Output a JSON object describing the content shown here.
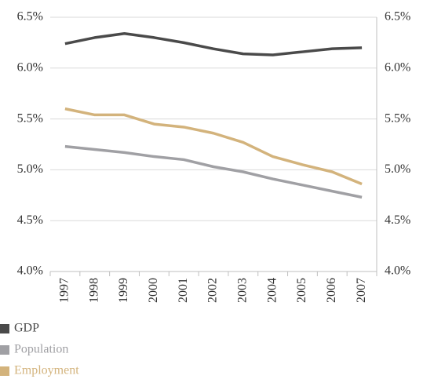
{
  "chart_data": {
    "type": "line",
    "categories": [
      "1997",
      "1998",
      "1999",
      "2000",
      "2001",
      "2002",
      "2003",
      "2004",
      "2005",
      "2006",
      "2007"
    ],
    "series": [
      {
        "name": "GDP",
        "color": "#4a4a4a",
        "values": [
          6.24,
          6.3,
          6.34,
          6.3,
          6.25,
          6.19,
          6.14,
          6.13,
          6.16,
          6.19,
          6.2
        ]
      },
      {
        "name": "Population",
        "color": "#a0a0a4",
        "values": [
          5.23,
          5.2,
          5.17,
          5.13,
          5.1,
          5.03,
          4.98,
          4.91,
          4.85,
          4.79,
          4.73
        ]
      },
      {
        "name": "Employment",
        "color": "#d3b37c",
        "values": [
          5.6,
          5.54,
          5.54,
          5.45,
          5.42,
          5.36,
          5.27,
          5.13,
          5.05,
          4.98,
          4.86
        ]
      }
    ],
    "ylim": [
      4.0,
      6.5
    ],
    "yticks": [
      {
        "value": 4.0,
        "label": "4.0%"
      },
      {
        "value": 4.5,
        "label": "4.5%"
      },
      {
        "value": 5.0,
        "label": "5.0%"
      },
      {
        "value": 5.5,
        "label": "5.5%"
      },
      {
        "value": 6.0,
        "label": "6.0%"
      },
      {
        "value": 6.5,
        "label": "6.5%"
      }
    ],
    "grid": true
  }
}
